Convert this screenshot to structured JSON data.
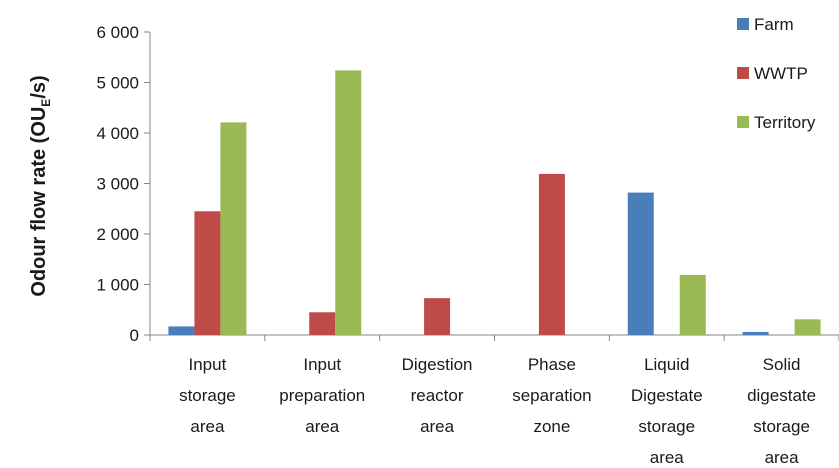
{
  "chart_data": {
    "type": "bar",
    "title": "",
    "xlabel": "",
    "ylabel": {
      "main": "Odour flow rate (OU",
      "sub": "E",
      "tail": "/s)"
    },
    "ylim": [
      0,
      6000
    ],
    "yticks": [
      0,
      1000,
      2000,
      3000,
      4000,
      5000,
      6000
    ],
    "ytick_labels": [
      "0",
      "1 000",
      "2 000",
      "3 000",
      "4 000",
      "5 000",
      "6 000"
    ],
    "grid": false,
    "legend_position": "top-right",
    "categories": [
      [
        "Input",
        "storage",
        "area"
      ],
      [
        "Input",
        "preparation",
        "area"
      ],
      [
        "Digestion",
        "reactor",
        "area"
      ],
      [
        "Phase",
        "separation",
        "zone"
      ],
      [
        "Liquid",
        "Digestate",
        "storage",
        "area"
      ],
      [
        "Solid",
        "digestate",
        "storage",
        "area"
      ]
    ],
    "series": [
      {
        "name": "Farm",
        "color": "#4a7ebb",
        "values": [
          170,
          0,
          0,
          0,
          2820,
          60
        ]
      },
      {
        "name": "WWTP",
        "color": "#be4b48",
        "values": [
          2450,
          450,
          730,
          3190,
          0,
          0
        ]
      },
      {
        "name": "Territory",
        "color": "#98b954",
        "values": [
          4210,
          5240,
          0,
          0,
          1190,
          310
        ]
      }
    ]
  }
}
